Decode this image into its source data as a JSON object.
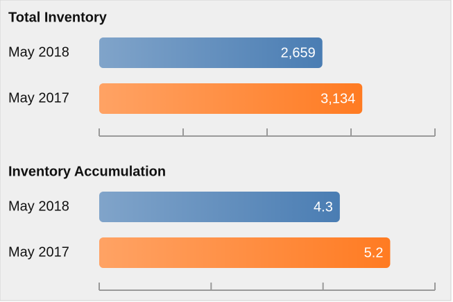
{
  "chart_data": [
    {
      "type": "bar",
      "orientation": "horizontal",
      "title": "Total Inventory",
      "categories": [
        "May 2018",
        "May 2017"
      ],
      "values": [
        2659,
        3134
      ],
      "value_labels": [
        "2,659",
        "3,134"
      ],
      "colors": [
        "#4a7db3",
        "#ff7b22"
      ],
      "xlim": [
        0,
        4000
      ],
      "xticks": [
        0,
        1000,
        2000,
        3000,
        4000
      ]
    },
    {
      "type": "bar",
      "orientation": "horizontal",
      "title": "Inventory Accumulation",
      "categories": [
        "May 2018",
        "May 2017"
      ],
      "values": [
        4.3,
        5.2
      ],
      "colors": [
        "#4a7db3",
        "#ff7b22"
      ],
      "xlim": [
        0,
        6
      ],
      "xticks": [
        0,
        2,
        4,
        6
      ]
    }
  ]
}
